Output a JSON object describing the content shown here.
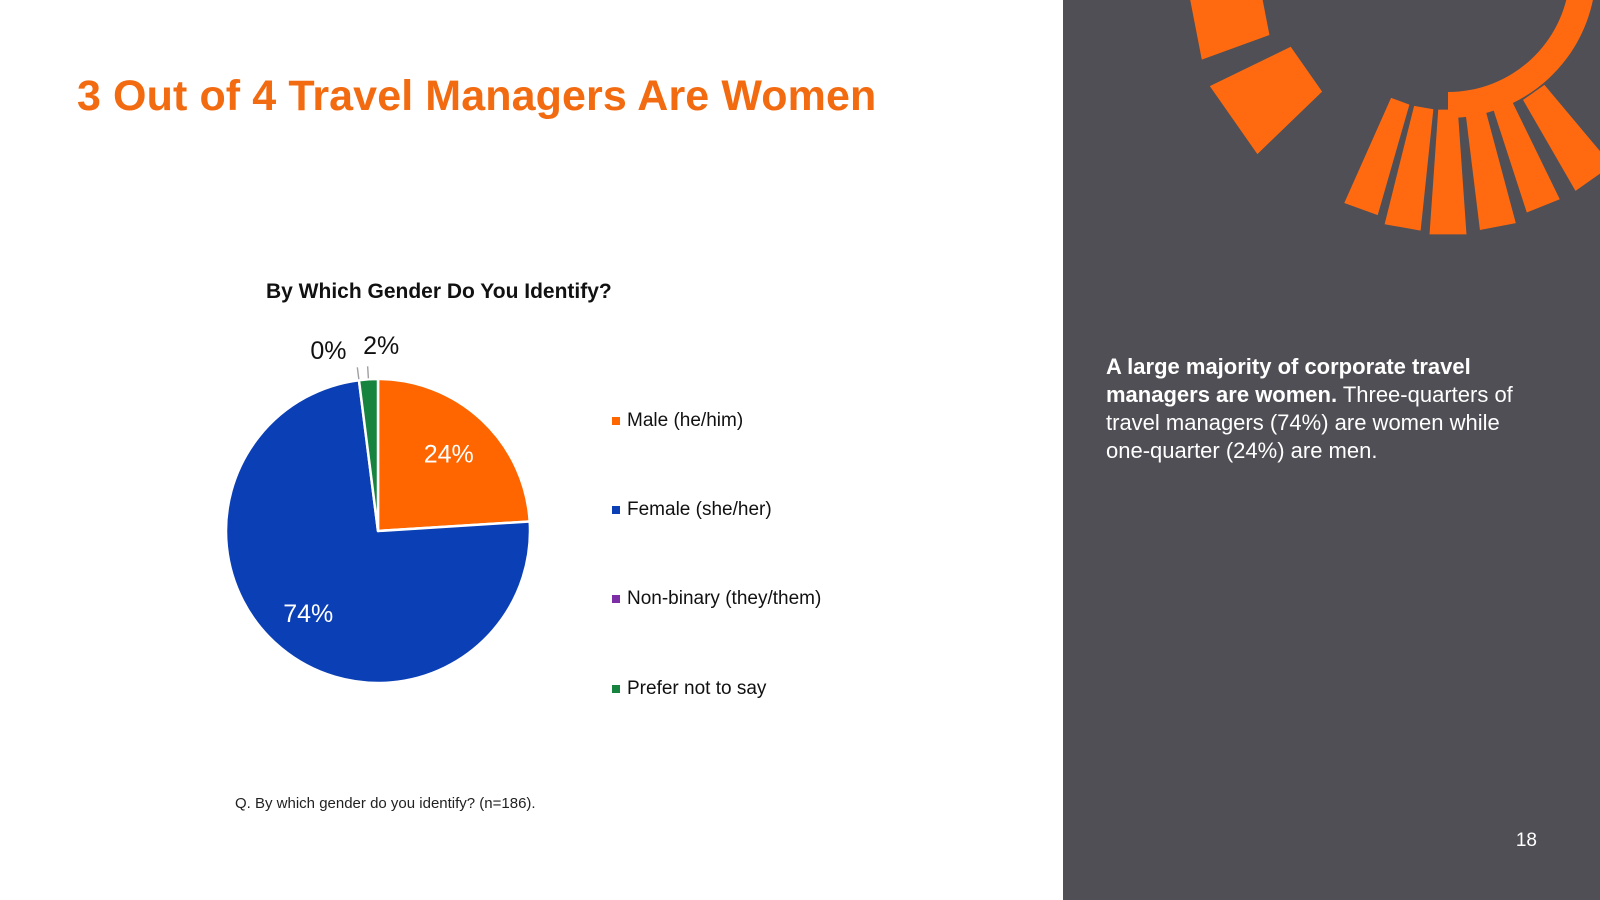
{
  "slide": {
    "title": "3 Out of 4 Travel Managers Are Women",
    "footnote": "Q. By which gender do you identify? (n=186).",
    "page_number": "18"
  },
  "side": {
    "bold_text": "A large majority of corporate travel managers are women.",
    "body_text": " Three-quarters of travel managers (74%) are women while one-quarter (24%) are men.",
    "accent_color": "#ff6a10",
    "panel_color": "#4f4f55"
  },
  "chart_data": {
    "type": "pie",
    "title": "By Which Gender Do You Identify?",
    "unit": "%",
    "categories": [
      "Male (he/him)",
      "Female (she/her)",
      "Non-binary (they/them)",
      "Prefer not to say"
    ],
    "values": [
      24,
      74,
      0,
      2
    ],
    "labels": [
      "24%",
      "74%",
      "0%",
      "2%"
    ],
    "colors": [
      "#ff6600",
      "#0b3fb5",
      "#7d2ea6",
      "#16843f"
    ],
    "legend_position": "right"
  }
}
